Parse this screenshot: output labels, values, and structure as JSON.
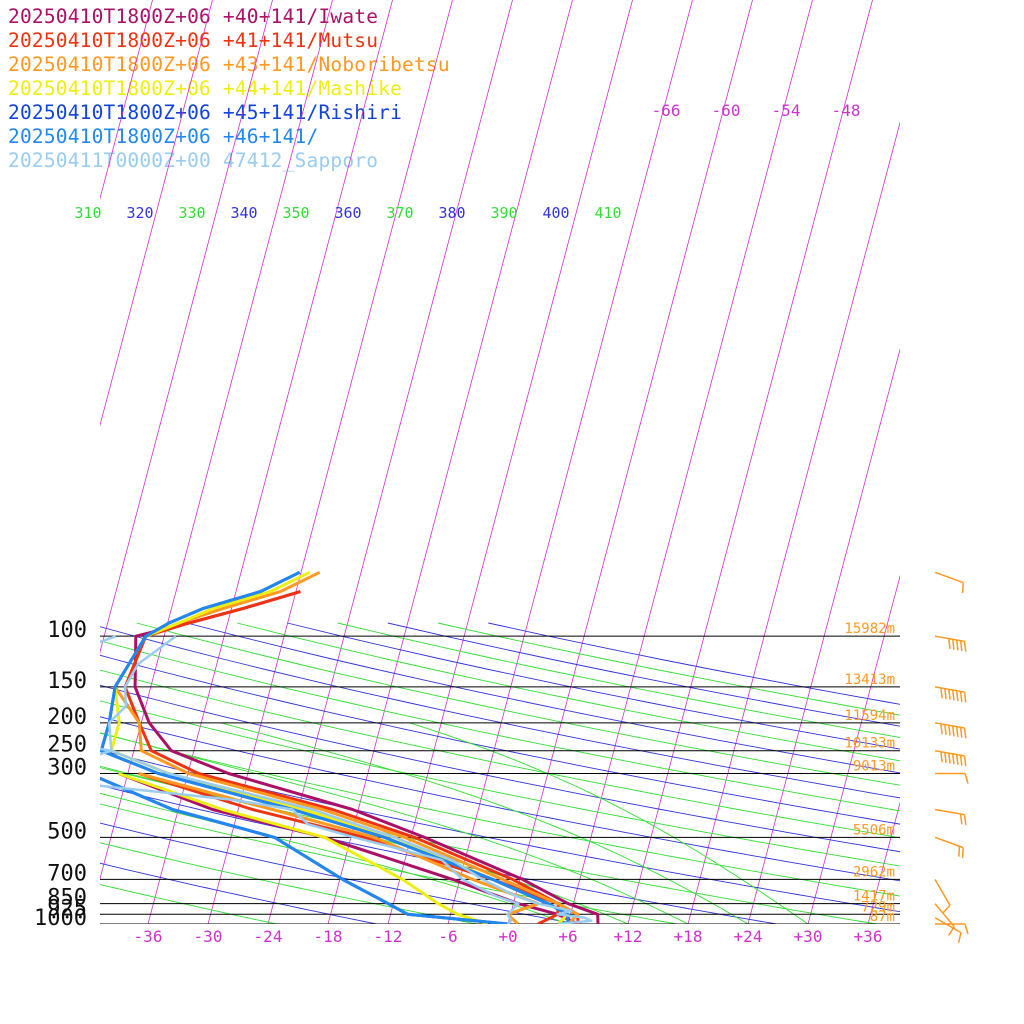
{
  "chart_data": {
    "type": "line",
    "title": "",
    "legend": [
      {
        "label": "20250410T1800Z+06 +40+141/Iwate",
        "color": "#aa1166"
      },
      {
        "label": "20250410T1800Z+06 +41+141/Mutsu",
        "color": "#ee3311"
      },
      {
        "label": "20250410T1800Z+06 +43+141/Noboribetsu",
        "color": "#ff9922"
      },
      {
        "label": "20250410T1800Z+06 +44+141/Mashike",
        "color": "#eeee11"
      },
      {
        "label": "20250410T1800Z+06 +45+141/Rishiri",
        "color": "#1144dd"
      },
      {
        "label": "20250410T1800Z+06 +46+141/",
        "color": "#2288ee"
      },
      {
        "label": "20250411T0000Z+00 47412_Sapporo",
        "color": "#99ccf0"
      }
    ],
    "pressure_levels": [
      {
        "p": 1000,
        "label": "1000",
        "height": "87m"
      },
      {
        "p": 925,
        "label": "925",
        "height": "729m"
      },
      {
        "p": 850,
        "label": "850",
        "height": "1417m"
      },
      {
        "p": 700,
        "label": "700",
        "height": "2962m"
      },
      {
        "p": 500,
        "label": "500",
        "height": "5506m"
      },
      {
        "p": 300,
        "label": "300",
        "height": "9013m"
      },
      {
        "p": 250,
        "label": "250",
        "height": "10133m"
      },
      {
        "p": 200,
        "label": "200",
        "height": "11594m"
      },
      {
        "p": 150,
        "label": "150",
        "height": "13413m"
      },
      {
        "p": 100,
        "label": "100",
        "height": "15982m"
      }
    ],
    "x_ticks": [
      "-36",
      "-30",
      "-24",
      "-18",
      "-12",
      "-6",
      "+0",
      "+6",
      "+12",
      "+18",
      "+24",
      "+30",
      "+36"
    ],
    "x_tick_values": [
      -36,
      -30,
      -24,
      -18,
      -12,
      -6,
      0,
      6,
      12,
      18,
      24,
      30,
      36
    ],
    "isotherm_labels_top": [
      "-66",
      "-60",
      "-54",
      "-48"
    ],
    "theta_labels": [
      "310",
      "320",
      "330",
      "340",
      "350",
      "360",
      "370",
      "380",
      "390",
      "400",
      "410"
    ],
    "series": [
      {
        "name": "20250410T1800Z+06 +40+141/Iwate",
        "color": "#aa1166",
        "width": 3,
        "temp": [
          [
            1000,
            9
          ],
          [
            925,
            8
          ],
          [
            850,
            4
          ],
          [
            700,
            -3
          ],
          [
            500,
            -17
          ],
          [
            400,
            -27
          ],
          [
            300,
            -43
          ],
          [
            250,
            -51
          ],
          [
            200,
            -56
          ],
          [
            150,
            -61
          ],
          [
            100,
            -66
          ],
          [
            90,
            -62
          ],
          [
            80,
            -58
          ],
          [
            70,
            -54
          ]
        ],
        "dew": [
          [
            1000,
            7
          ],
          [
            925,
            4
          ],
          [
            850,
            -1
          ],
          [
            700,
            -10
          ],
          [
            500,
            -27
          ],
          [
            400,
            -41
          ],
          [
            300,
            -54
          ]
        ]
      },
      {
        "name": "20250410T1800Z+06 +41+141/Mutsu",
        "color": "#ee3311",
        "width": 3,
        "temp": [
          [
            1000,
            7
          ],
          [
            925,
            6
          ],
          [
            850,
            3
          ],
          [
            700,
            -4
          ],
          [
            500,
            -18
          ],
          [
            400,
            -29
          ],
          [
            300,
            -46
          ],
          [
            250,
            -53
          ],
          [
            200,
            -57
          ],
          [
            150,
            -62
          ],
          [
            100,
            -65
          ],
          [
            90,
            -62
          ],
          [
            80,
            -58
          ],
          [
            70,
            -54
          ]
        ],
        "dew": [
          [
            1000,
            3
          ],
          [
            925,
            4
          ],
          [
            850,
            3
          ],
          [
            700,
            -6
          ],
          [
            500,
            -23
          ],
          [
            400,
            -37
          ],
          [
            300,
            -52
          ]
        ]
      },
      {
        "name": "20250410T1800Z+06 +43+141/Noboribetsu",
        "color": "#ff9922",
        "width": 3,
        "temp": [
          [
            1000,
            6
          ],
          [
            925,
            6
          ],
          [
            850,
            3
          ],
          [
            700,
            -5
          ],
          [
            500,
            -19
          ],
          [
            400,
            -30
          ],
          [
            300,
            -47
          ],
          [
            250,
            -54
          ],
          [
            200,
            -57
          ],
          [
            150,
            -63
          ],
          [
            100,
            -65
          ],
          [
            90,
            -63
          ],
          [
            80,
            -60
          ],
          [
            70,
            -56
          ],
          [
            60,
            -54
          ]
        ],
        "dew": [
          [
            1000,
            1
          ],
          [
            925,
            -1
          ],
          [
            850,
            1
          ],
          [
            700,
            -8
          ],
          [
            500,
            -22
          ],
          [
            400,
            -35
          ],
          [
            300,
            -52
          ]
        ]
      },
      {
        "name": "20250410T1800Z+06 +44+141/Mashike",
        "color": "#eeee11",
        "width": 3,
        "temp": [
          [
            1000,
            5
          ],
          [
            925,
            5
          ],
          [
            850,
            2
          ],
          [
            700,
            -6
          ],
          [
            500,
            -20
          ],
          [
            400,
            -32
          ],
          [
            300,
            -49
          ],
          [
            250,
            -57
          ],
          [
            200,
            -59
          ],
          [
            150,
            -63
          ],
          [
            100,
            -65
          ],
          [
            90,
            -63
          ],
          [
            80,
            -61
          ],
          [
            70,
            -57
          ],
          [
            60,
            -55
          ]
        ],
        "dew": [
          [
            1000,
            -2
          ],
          [
            925,
            -6
          ],
          [
            850,
            -9
          ],
          [
            700,
            -15
          ],
          [
            500,
            -27
          ],
          [
            400,
            -40
          ],
          [
            300,
            -54
          ]
        ]
      },
      {
        "name": "20250410T1800Z+06 +45+141/Rishiri",
        "color": "#1144dd",
        "width": 3,
        "temp": [
          [
            1000,
            6
          ],
          [
            925,
            5
          ],
          [
            850,
            2
          ],
          [
            700,
            -6
          ],
          [
            500,
            -21
          ],
          [
            400,
            -33
          ],
          [
            300,
            -50
          ],
          [
            250,
            -58
          ],
          [
            200,
            -60
          ],
          [
            150,
            -63
          ],
          [
            100,
            -65
          ],
          [
            90,
            -64
          ],
          [
            80,
            -62
          ],
          [
            70,
            -58
          ],
          [
            60,
            -56
          ]
        ],
        "dew": [
          [
            1000,
            0
          ],
          [
            925,
            -11
          ],
          [
            850,
            -14
          ],
          [
            700,
            -21
          ],
          [
            500,
            -32
          ],
          [
            400,
            -45
          ],
          [
            300,
            -57
          ]
        ]
      },
      {
        "name": "20250410T1800Z+06 +46+141/",
        "color": "#2288ee",
        "width": 3,
        "temp": [
          [
            1000,
            6
          ],
          [
            925,
            5
          ],
          [
            850,
            2
          ],
          [
            700,
            -6
          ],
          [
            500,
            -21
          ],
          [
            400,
            -33
          ],
          [
            300,
            -50
          ],
          [
            250,
            -58
          ],
          [
            200,
            -60
          ],
          [
            150,
            -63
          ],
          [
            100,
            -65
          ],
          [
            90,
            -64
          ],
          [
            80,
            -62
          ],
          [
            70,
            -58
          ],
          [
            60,
            -56
          ]
        ],
        "dew": [
          [
            1000,
            0
          ],
          [
            925,
            -11
          ],
          [
            850,
            -14
          ],
          [
            700,
            -21
          ],
          [
            500,
            -32
          ],
          [
            400,
            -45
          ],
          [
            300,
            -57
          ]
        ]
      },
      {
        "name": "20250411T0000Z+00 47412_Sapporo",
        "color": "#99ccf0",
        "width": 2.5,
        "temp": [
          [
            1000,
            5
          ],
          [
            975,
            8
          ],
          [
            950,
            7
          ],
          [
            925,
            4
          ],
          [
            900,
            5
          ],
          [
            850,
            1
          ],
          [
            800,
            -2
          ],
          [
            700,
            -7
          ],
          [
            600,
            -12
          ],
          [
            500,
            -20
          ],
          [
            400,
            -31
          ],
          [
            300,
            -49
          ],
          [
            250,
            -57
          ],
          [
            200,
            -60
          ],
          [
            175,
            -60
          ],
          [
            150,
            -62
          ],
          [
            125,
            -63
          ],
          [
            100,
            -62
          ]
        ],
        "dew": [
          [
            1000,
            0
          ],
          [
            975,
            0
          ],
          [
            925,
            -1
          ],
          [
            850,
            -1
          ],
          [
            800,
            -4
          ],
          [
            700,
            -9
          ],
          [
            600,
            -13
          ],
          [
            500,
            -24
          ],
          [
            450,
            -30
          ],
          [
            400,
            -33
          ],
          [
            370,
            -40
          ],
          [
            330,
            -55
          ],
          [
            300,
            -56
          ],
          [
            270,
            -59
          ],
          [
            250,
            -57
          ],
          [
            200,
            -77
          ],
          [
            170,
            -75
          ],
          [
            150,
            -76
          ],
          [
            130,
            -73
          ],
          [
            120,
            -72
          ],
          [
            100,
            -68
          ]
        ]
      }
    ],
    "wind_barbs": [
      {
        "p": 1000,
        "speed": 10,
        "dir": 270
      },
      {
        "p": 950,
        "speed": 10,
        "dir": 300
      },
      {
        "p": 850,
        "speed": 10,
        "dir": 320
      },
      {
        "p": 700,
        "speed": 10,
        "dir": 330
      },
      {
        "p": 500,
        "speed": 15,
        "dir": 290
      },
      {
        "p": 400,
        "speed": 15,
        "dir": 280
      },
      {
        "p": 300,
        "speed": 5,
        "dir": 270
      },
      {
        "p": 250,
        "speed": 65,
        "dir": 280
      },
      {
        "p": 200,
        "speed": 70,
        "dir": 280
      },
      {
        "p": 150,
        "speed": 65,
        "dir": 280
      },
      {
        "p": 100,
        "speed": 50,
        "dir": 280
      },
      {
        "p": 60,
        "speed": 10,
        "dir": 290
      }
    ],
    "xlim": [
      -40,
      40
    ],
    "ylim": [
      1000,
      100
    ],
    "grid": true
  }
}
